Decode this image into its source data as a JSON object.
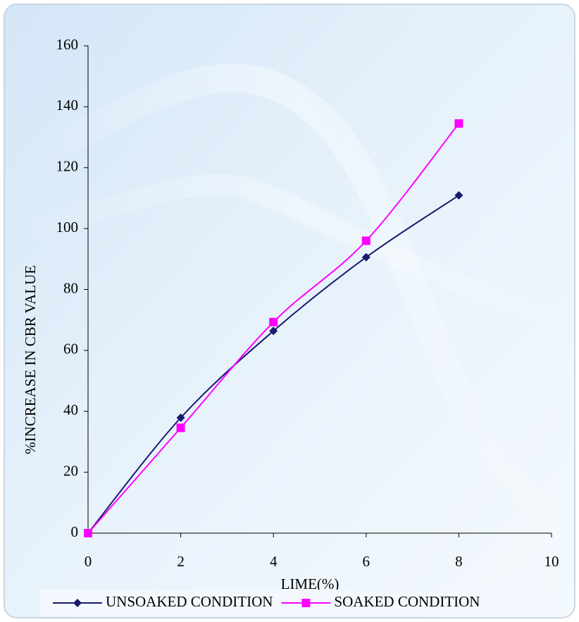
{
  "chart_data": {
    "type": "line",
    "x_label": "LIME(%)",
    "y_label": "%INCREASE IN CBR VALUE",
    "xlim": [
      0,
      10
    ],
    "xticks": [
      0,
      2,
      4,
      6,
      8,
      10
    ],
    "ylim": [
      0,
      160
    ],
    "yticks": [
      0,
      20,
      40,
      60,
      80,
      100,
      120,
      140,
      160
    ],
    "legend": "bottom",
    "smooth": true,
    "series": [
      {
        "name": "UNSOAKED CONDITION",
        "color": "#1a1a6e",
        "marker": "diamond",
        "x": [
          0,
          2,
          4,
          6,
          8
        ],
        "values": [
          0,
          37.9,
          66.4,
          90.6,
          110.9
        ]
      },
      {
        "name": "SOAKED CONDITION",
        "color": "#ff00ff",
        "marker": "square",
        "x": [
          0,
          2,
          4,
          6,
          8
        ],
        "values": [
          0,
          34.6,
          69.3,
          96,
          134.5
        ]
      }
    ]
  }
}
